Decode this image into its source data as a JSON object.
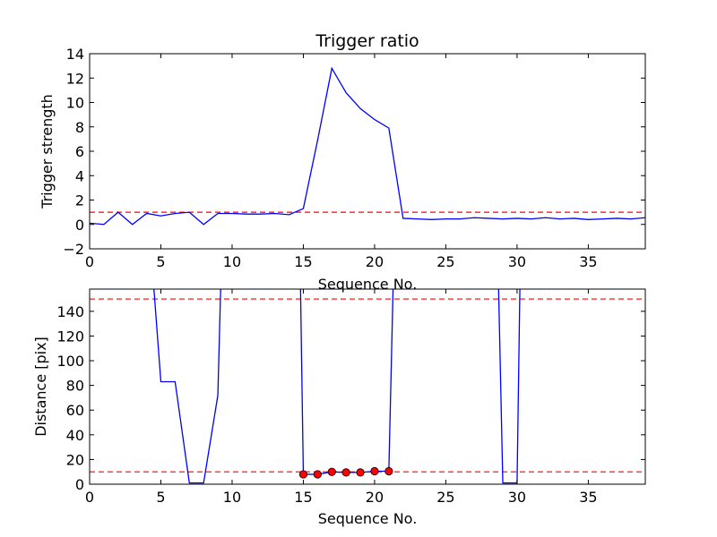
{
  "chart_data": [
    {
      "type": "line",
      "title": "Trigger ratio",
      "xlabel": "Sequence No.",
      "ylabel": "Trigger strength",
      "xlim": [
        0,
        39
      ],
      "ylim": [
        -2,
        14
      ],
      "xticks": [
        0,
        5,
        10,
        15,
        20,
        25,
        30,
        35
      ],
      "yticks": [
        -2,
        0,
        2,
        4,
        6,
        8,
        10,
        12,
        14
      ],
      "grid": false,
      "series": [
        {
          "color": "#0000ff",
          "x": [
            0,
            1,
            2,
            3,
            4,
            5,
            6,
            7,
            8,
            9,
            10,
            11,
            12,
            13,
            14,
            15,
            16,
            17,
            18,
            19,
            20,
            21,
            22,
            23,
            24,
            25,
            26,
            27,
            28,
            29,
            30,
            31,
            32,
            33,
            34,
            35,
            36,
            37,
            38,
            39
          ],
          "values": [
            0.1,
            0.0,
            1.0,
            0.0,
            0.9,
            0.7,
            0.9,
            1.0,
            0.0,
            0.9,
            0.9,
            0.85,
            0.85,
            0.9,
            0.8,
            1.3,
            6.9,
            12.8,
            10.8,
            9.5,
            8.6,
            7.9,
            0.5,
            0.45,
            0.4,
            0.45,
            0.45,
            0.55,
            0.5,
            0.45,
            0.5,
            0.45,
            0.55,
            0.45,
            0.5,
            0.4,
            0.45,
            0.5,
            0.45,
            0.55
          ]
        }
      ],
      "reference_lines": [
        {
          "y": 1,
          "color": "#ff0000",
          "style": "dashed"
        }
      ]
    },
    {
      "type": "line",
      "title": "",
      "xlabel": "Sequence No.",
      "ylabel": "Distance [pix]",
      "xlim": [
        0,
        39
      ],
      "ylim": [
        0,
        158
      ],
      "xticks": [
        0,
        5,
        10,
        15,
        20,
        25,
        30,
        35
      ],
      "yticks": [
        0,
        20,
        40,
        60,
        80,
        100,
        120,
        140
      ],
      "grid": false,
      "series": [
        {
          "color": "#0000ff",
          "x": [
            4.5,
            5,
            6,
            7,
            8,
            9,
            9.2
          ],
          "values": [
            160,
            83,
            83,
            1,
            1,
            72,
            160
          ]
        },
        {
          "color": "#0000ff",
          "x": [
            14.8,
            15,
            16,
            17,
            18,
            19,
            20,
            21,
            21.3
          ],
          "values": [
            160,
            8,
            8,
            10,
            9.5,
            9.5,
            10.5,
            10.5,
            160
          ]
        },
        {
          "color": "#0000ff",
          "x": [
            28.7,
            29,
            30,
            30.2
          ],
          "values": [
            160,
            1,
            1,
            160
          ]
        }
      ],
      "markers": {
        "color": "#ff0000",
        "x": [
          15,
          16,
          17,
          18,
          19,
          20,
          21
        ],
        "values": [
          8,
          8,
          10,
          9.5,
          9.5,
          10.5,
          10.5
        ]
      },
      "reference_lines": [
        {
          "y": 150,
          "color": "#ff0000",
          "style": "dashed"
        },
        {
          "y": 10,
          "color": "#ff0000",
          "style": "dashed"
        }
      ]
    }
  ]
}
